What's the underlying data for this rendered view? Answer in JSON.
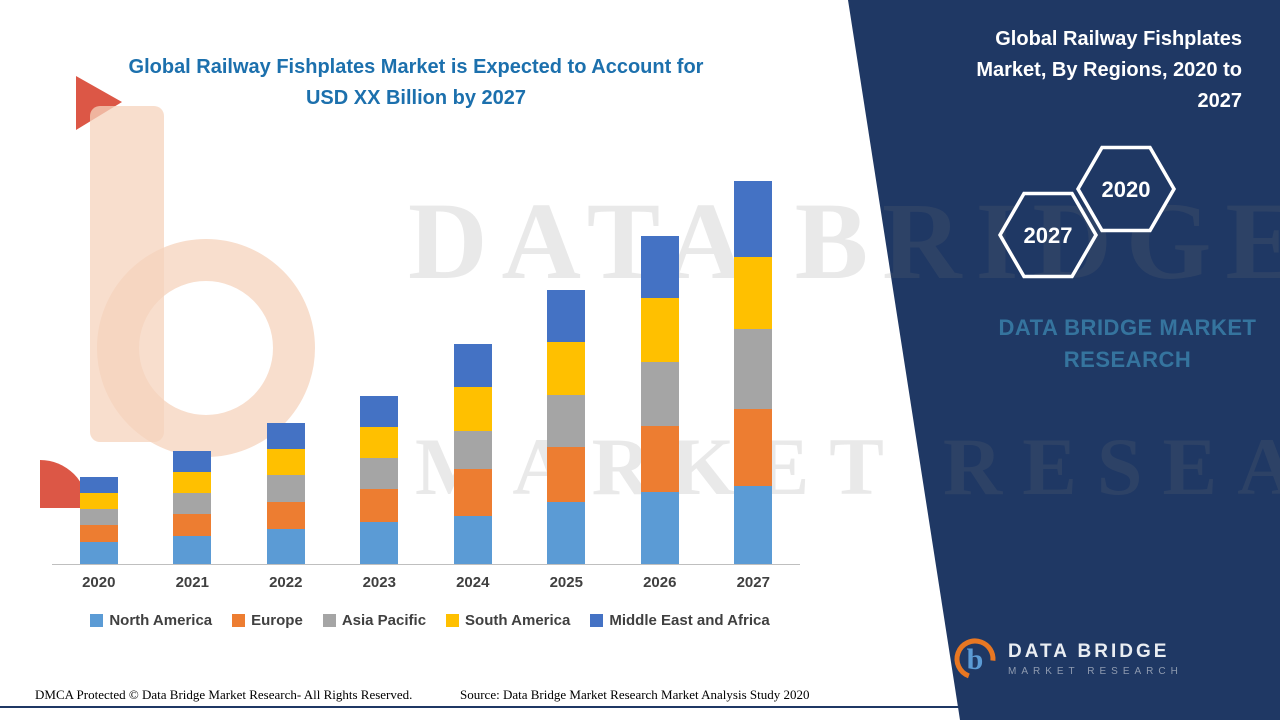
{
  "colors": {
    "title_blue": "#1C70AD",
    "panel_navy": "#1F3864",
    "axis_gray": "#BFBFBF",
    "label_gray": "#404040",
    "logo_orange": "#E87722"
  },
  "header": {
    "title_line1": "Global Railway Fishplates Market is Expected to Account for",
    "title_line2": "USD XX Billion by 2027"
  },
  "right_panel": {
    "title": "Global Railway Fishplates Market, By Regions, 2020 to 2027",
    "hexagon_back_label": "2027",
    "hexagon_front_label": "2020",
    "brand_caption": "DATA BRIDGE MARKET RESEARCH",
    "logo_name": "DATA BRIDGE",
    "logo_tagline": "MARKET RESEARCH"
  },
  "watermark": {
    "line1": "DATA BRIDGE",
    "line2": "MARKET RESEARCH"
  },
  "footer": {
    "dmca": "DMCA Protected © Data Bridge Market Research- All Rights Reserved.",
    "source": "Source: Data Bridge Market Research Market Analysis Study 2020"
  },
  "chart_data": {
    "type": "bar",
    "stacked": true,
    "title": "Global Railway Fishplates Market is Expected to Account for USD XX Billion by 2027",
    "xlabel": "",
    "ylabel": "",
    "y_axis_visible": false,
    "legend_position": "bottom",
    "unit_note": "Values are relative estimates in unlabeled USD billions (axis not shown in source)",
    "categories": [
      "2020",
      "2021",
      "2022",
      "2023",
      "2024",
      "2025",
      "2026",
      "2027"
    ],
    "series": [
      {
        "name": "North America",
        "color": "#5B9BD5",
        "values": [
          0.22,
          0.28,
          0.35,
          0.42,
          0.48,
          0.62,
          0.72,
          0.78
        ]
      },
      {
        "name": "Europe",
        "color": "#ED7D31",
        "values": [
          0.17,
          0.22,
          0.27,
          0.33,
          0.47,
          0.55,
          0.66,
          0.77
        ]
      },
      {
        "name": "Asia Pacific",
        "color": "#A5A5A5",
        "values": [
          0.16,
          0.21,
          0.27,
          0.31,
          0.38,
          0.52,
          0.64,
          0.8
        ]
      },
      {
        "name": "South America",
        "color": "#FFC000",
        "values": [
          0.16,
          0.21,
          0.26,
          0.31,
          0.44,
          0.53,
          0.64,
          0.72
        ]
      },
      {
        "name": "Middle East and Africa",
        "color": "#4472C4",
        "values": [
          0.16,
          0.21,
          0.26,
          0.31,
          0.43,
          0.52,
          0.62,
          0.76
        ]
      }
    ],
    "totals": [
      0.87,
      1.13,
      1.41,
      1.68,
      2.2,
      2.74,
      3.28,
      3.83
    ]
  }
}
